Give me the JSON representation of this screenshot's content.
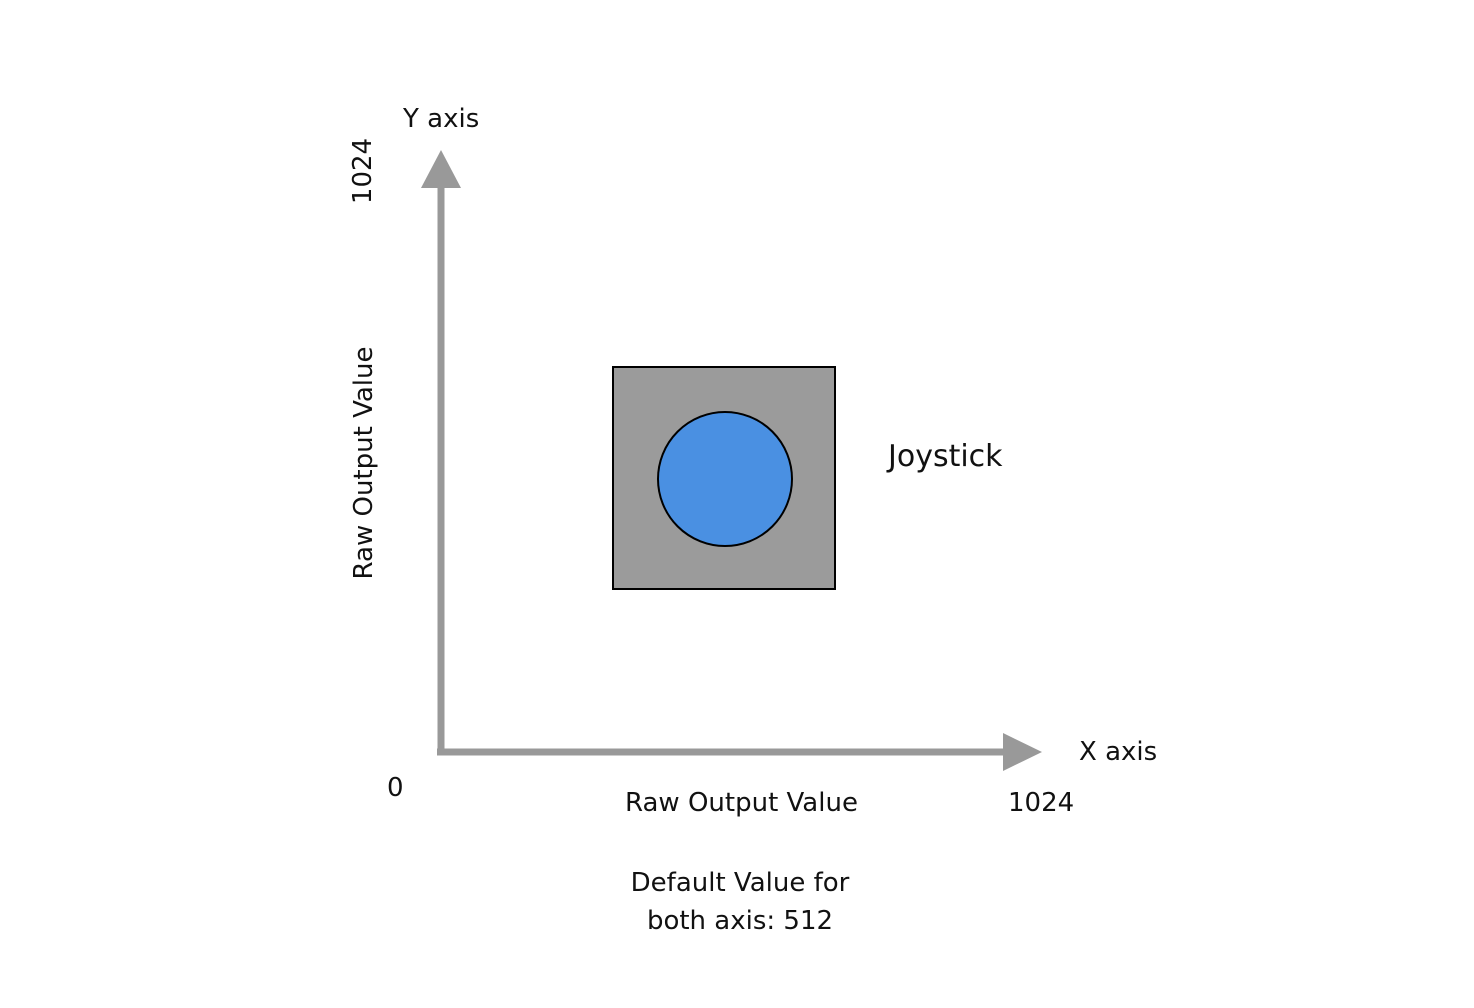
{
  "diagram": {
    "y_axis": {
      "name": "Y axis",
      "label": "Raw Output Value",
      "max": "1024"
    },
    "x_axis": {
      "name": "X axis",
      "label": "Raw Output Value",
      "max": "1024"
    },
    "origin": "0",
    "component": {
      "label": "Joystick",
      "colors": {
        "base": "#9b9b9b",
        "knob": "#4a90e2",
        "outline": "#000000"
      }
    },
    "axis_color": "#999999",
    "note": {
      "line1": "Default Value for",
      "line2": "both axis: 512"
    }
  }
}
